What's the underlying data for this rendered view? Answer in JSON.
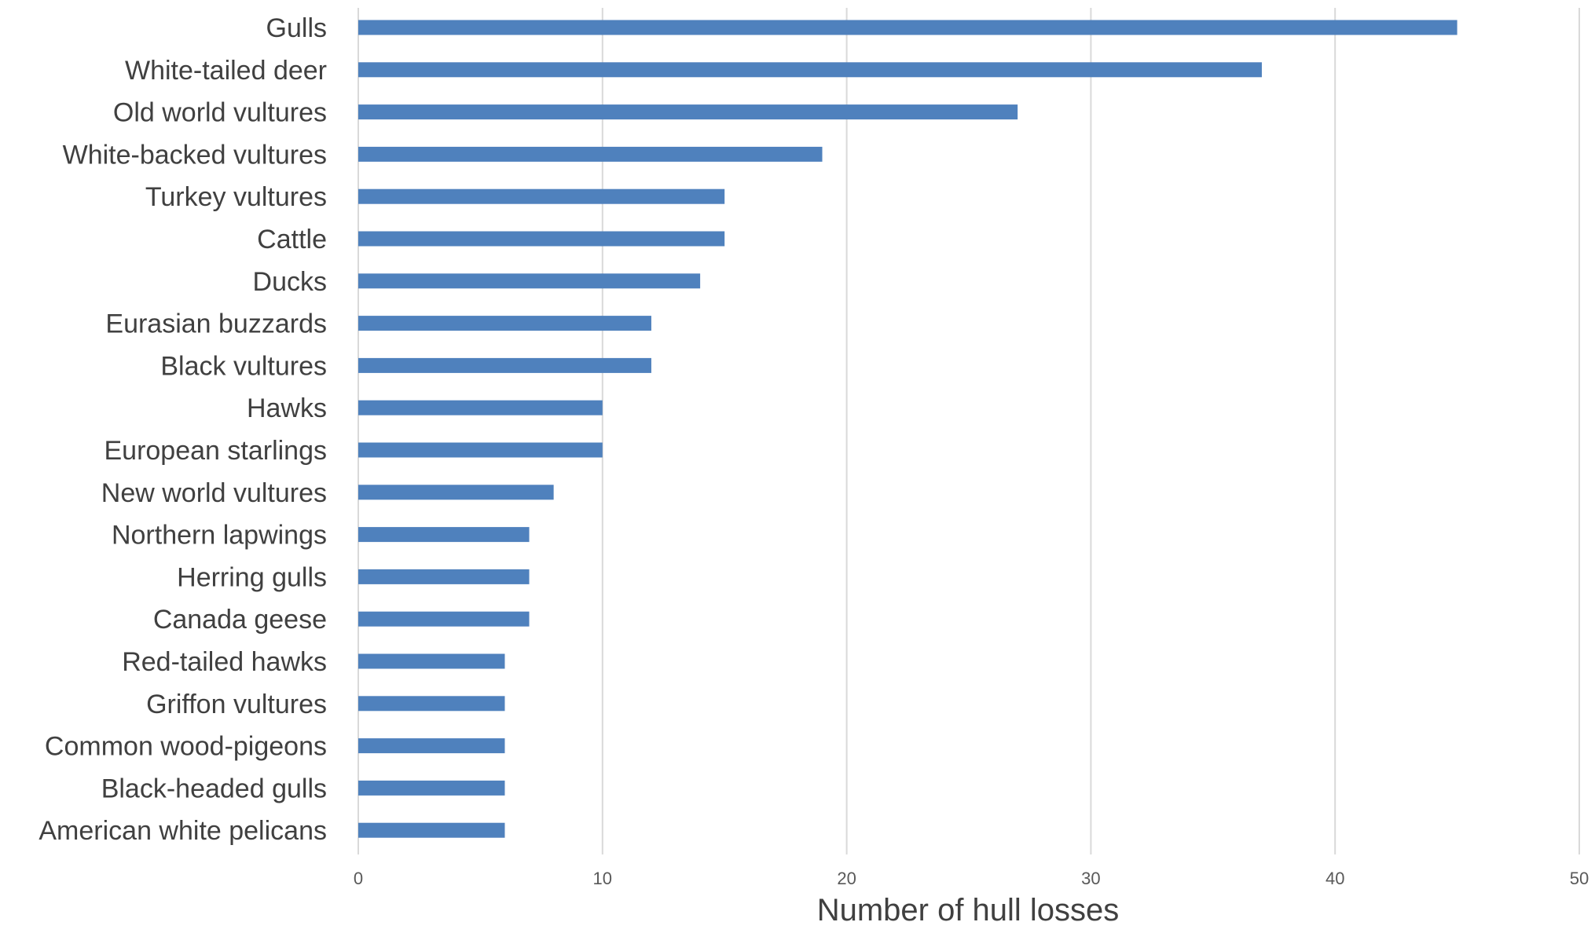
{
  "chart_data": {
    "type": "bar",
    "orientation": "horizontal",
    "categories": [
      "Gulls",
      "White-tailed deer",
      "Old world vultures",
      "White-backed vultures",
      "Turkey vultures",
      "Cattle",
      "Ducks",
      "Eurasian buzzards",
      "Black vultures",
      "Hawks",
      "European starlings",
      "New world vultures",
      "Northern lapwings",
      "Herring gulls",
      "Canada geese",
      "Red-tailed hawks",
      "Griffon vultures",
      "Common wood-pigeons",
      "Black-headed gulls",
      "American white pelicans"
    ],
    "values": [
      45,
      37,
      27,
      19,
      15,
      15,
      14,
      12,
      12,
      10,
      10,
      8,
      7,
      7,
      7,
      6,
      6,
      6,
      6,
      6
    ],
    "xlabel": "Number of hull losses",
    "ylabel": "",
    "xlim": [
      0,
      50
    ],
    "xticks": [
      "0",
      "10",
      "20",
      "30",
      "40",
      "50"
    ],
    "grid": "vertical",
    "legend": "none",
    "bar_color": "#4f81bd",
    "grid_color": "#d9d9d9"
  }
}
